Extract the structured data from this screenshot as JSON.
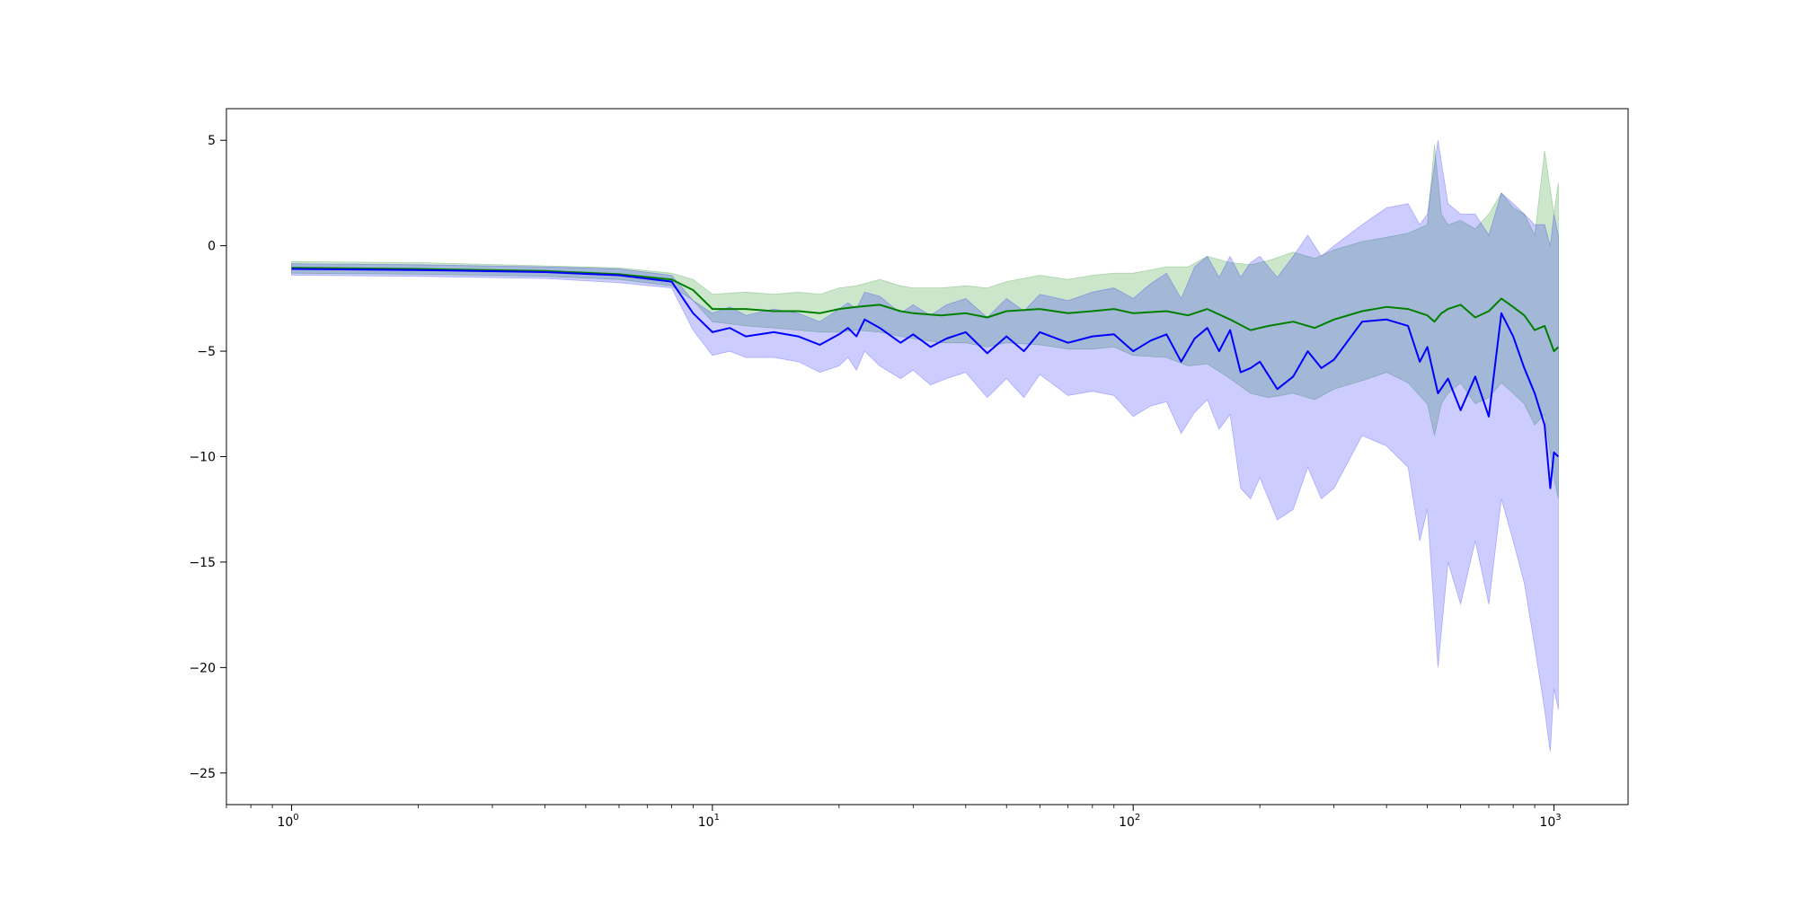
{
  "chart_data": {
    "type": "line",
    "title": "",
    "xlabel": "",
    "ylabel": "",
    "xscale": "log",
    "xlim": [
      0.7,
      1500
    ],
    "ylim": [
      -26.5,
      6.5
    ],
    "grid": false,
    "legend": "none",
    "x_ticks": [
      {
        "value": 1,
        "base": "10",
        "exp": "0"
      },
      {
        "value": 10,
        "base": "10",
        "exp": "1"
      },
      {
        "value": 100,
        "base": "10",
        "exp": "2"
      },
      {
        "value": 1000,
        "base": "10",
        "exp": "3"
      }
    ],
    "y_ticks": [
      {
        "value": 5,
        "label": "5"
      },
      {
        "value": 0,
        "label": "0"
      },
      {
        "value": -5,
        "label": "−5"
      },
      {
        "value": -10,
        "label": "−10"
      },
      {
        "value": -15,
        "label": "−15"
      },
      {
        "value": -20,
        "label": "−20"
      },
      {
        "value": -25,
        "label": "−25"
      }
    ],
    "series": [
      {
        "color": "#008000",
        "band_color": "#008000",
        "band_opacity": 0.2,
        "x": [
          1,
          2,
          4,
          6,
          8,
          9,
          10,
          12,
          14,
          16,
          18,
          20,
          22,
          25,
          28,
          30,
          35,
          40,
          45,
          50,
          60,
          70,
          80,
          90,
          100,
          120,
          135,
          150,
          170,
          190,
          210,
          240,
          270,
          300,
          350,
          400,
          450,
          500,
          520,
          540,
          560,
          600,
          650,
          700,
          750,
          800,
          850,
          900,
          950,
          1000,
          1024
        ],
        "y": [
          -1.05,
          -1.1,
          -1.2,
          -1.35,
          -1.6,
          -2.1,
          -3.0,
          -3.0,
          -3.1,
          -3.1,
          -3.2,
          -3.0,
          -2.9,
          -2.8,
          -3.1,
          -3.2,
          -3.3,
          -3.2,
          -3.4,
          -3.1,
          -3.0,
          -3.2,
          -3.1,
          -3.0,
          -3.2,
          -3.1,
          -3.3,
          -3.0,
          -3.5,
          -4.0,
          -3.8,
          -3.6,
          -3.9,
          -3.5,
          -3.1,
          -2.9,
          -3.0,
          -3.3,
          -3.6,
          -3.2,
          -3.0,
          -2.8,
          -3.4,
          -3.1,
          -2.5,
          -2.9,
          -3.3,
          -4.0,
          -3.8,
          -5.0,
          -4.8
        ],
        "lower": [
          -1.3,
          -1.35,
          -1.45,
          -1.6,
          -1.9,
          -2.6,
          -3.6,
          -3.8,
          -3.9,
          -4.0,
          -4.1,
          -4.1,
          -4.0,
          -4.1,
          -4.3,
          -4.4,
          -4.6,
          -4.6,
          -4.8,
          -4.6,
          -4.7,
          -4.9,
          -4.9,
          -4.8,
          -5.2,
          -5.3,
          -5.7,
          -5.6,
          -6.3,
          -7.0,
          -7.2,
          -7.0,
          -7.3,
          -6.8,
          -6.4,
          -6.0,
          -6.5,
          -7.5,
          -9.0,
          -7.5,
          -7.0,
          -6.5,
          -7.5,
          -7.2,
          -6.5,
          -7.0,
          -7.5,
          -8.5,
          -8.0,
          -11.0,
          -12.0
        ],
        "upper": [
          -0.75,
          -0.8,
          -0.95,
          -1.05,
          -1.3,
          -1.6,
          -2.3,
          -2.2,
          -2.3,
          -2.2,
          -2.3,
          -2.0,
          -1.9,
          -1.6,
          -1.9,
          -2.0,
          -2.0,
          -1.9,
          -2.0,
          -1.7,
          -1.4,
          -1.6,
          -1.4,
          -1.3,
          -1.3,
          -1.0,
          -1.0,
          -0.5,
          -0.8,
          -0.9,
          -0.7,
          -0.3,
          -0.6,
          -0.2,
          0.2,
          0.4,
          0.6,
          1.0,
          4.8,
          1.5,
          1.0,
          1.2,
          0.8,
          1.5,
          2.5,
          1.8,
          1.5,
          0.5,
          4.5,
          1.5,
          3.0
        ]
      },
      {
        "color": "#0000ff",
        "band_color": "#0000ff",
        "band_opacity": 0.2,
        "x": [
          1,
          2,
          4,
          6,
          8,
          9,
          10,
          11,
          12,
          14,
          16,
          18,
          20,
          21,
          22,
          23,
          25,
          28,
          30,
          33,
          36,
          40,
          45,
          50,
          55,
          60,
          70,
          80,
          90,
          100,
          110,
          120,
          130,
          140,
          150,
          160,
          170,
          180,
          190,
          200,
          220,
          240,
          260,
          280,
          300,
          350,
          400,
          450,
          480,
          500,
          530,
          560,
          600,
          650,
          700,
          750,
          800,
          850,
          900,
          950,
          980,
          1000,
          1024
        ],
        "y": [
          -1.1,
          -1.15,
          -1.25,
          -1.4,
          -1.7,
          -3.2,
          -4.1,
          -3.9,
          -4.3,
          -4.1,
          -4.3,
          -4.7,
          -4.2,
          -3.9,
          -4.3,
          -3.5,
          -3.9,
          -4.6,
          -4.2,
          -4.8,
          -4.4,
          -4.1,
          -5.1,
          -4.3,
          -5.0,
          -4.1,
          -4.6,
          -4.3,
          -4.2,
          -5.0,
          -4.5,
          -4.2,
          -5.5,
          -4.4,
          -3.9,
          -5.0,
          -4.0,
          -6.0,
          -5.8,
          -5.5,
          -6.8,
          -6.2,
          -5.0,
          -5.8,
          -5.4,
          -3.6,
          -3.5,
          -3.8,
          -5.5,
          -4.8,
          -7.0,
          -6.3,
          -7.8,
          -6.2,
          -8.1,
          -3.2,
          -4.3,
          -5.8,
          -7.0,
          -8.5,
          -11.5,
          -9.8,
          -10.0
        ],
        "lower": [
          -1.4,
          -1.45,
          -1.55,
          -1.75,
          -2.0,
          -4.0,
          -5.2,
          -5.0,
          -5.3,
          -5.3,
          -5.5,
          -6.0,
          -5.7,
          -5.3,
          -5.9,
          -5.0,
          -5.7,
          -6.3,
          -5.9,
          -6.6,
          -6.3,
          -6.0,
          -7.2,
          -6.3,
          -7.2,
          -6.1,
          -7.1,
          -6.9,
          -7.1,
          -8.1,
          -7.6,
          -7.4,
          -8.9,
          -7.9,
          -7.3,
          -8.7,
          -8.0,
          -11.5,
          -12.0,
          -11.0,
          -13.0,
          -12.5,
          -10.5,
          -12.0,
          -11.5,
          -9.0,
          -9.5,
          -10.5,
          -14.0,
          -12.5,
          -20.0,
          -15.0,
          -17.0,
          -14.0,
          -17.0,
          -12.0,
          -14.0,
          -16.0,
          -19.0,
          -22.0,
          -24.0,
          -21.0,
          -22.0
        ],
        "upper": [
          -0.85,
          -0.9,
          -1.0,
          -1.1,
          -1.4,
          -2.6,
          -3.2,
          -2.9,
          -3.3,
          -3.0,
          -3.2,
          -3.6,
          -3.0,
          -2.7,
          -3.0,
          -2.2,
          -2.4,
          -3.2,
          -2.8,
          -3.3,
          -2.8,
          -2.5,
          -3.4,
          -2.5,
          -3.1,
          -2.3,
          -2.6,
          -2.2,
          -2.0,
          -2.5,
          -1.8,
          -1.3,
          -2.5,
          -1.0,
          -0.5,
          -1.5,
          -0.5,
          -1.5,
          -0.8,
          -0.5,
          -1.5,
          -0.5,
          0.5,
          -0.5,
          0.0,
          1.0,
          1.8,
          2.0,
          1.0,
          1.5,
          5.0,
          2.0,
          1.5,
          1.5,
          0.5,
          2.5,
          2.0,
          1.5,
          1.0,
          1.0,
          0.0,
          1.5,
          0.5
        ]
      }
    ]
  }
}
